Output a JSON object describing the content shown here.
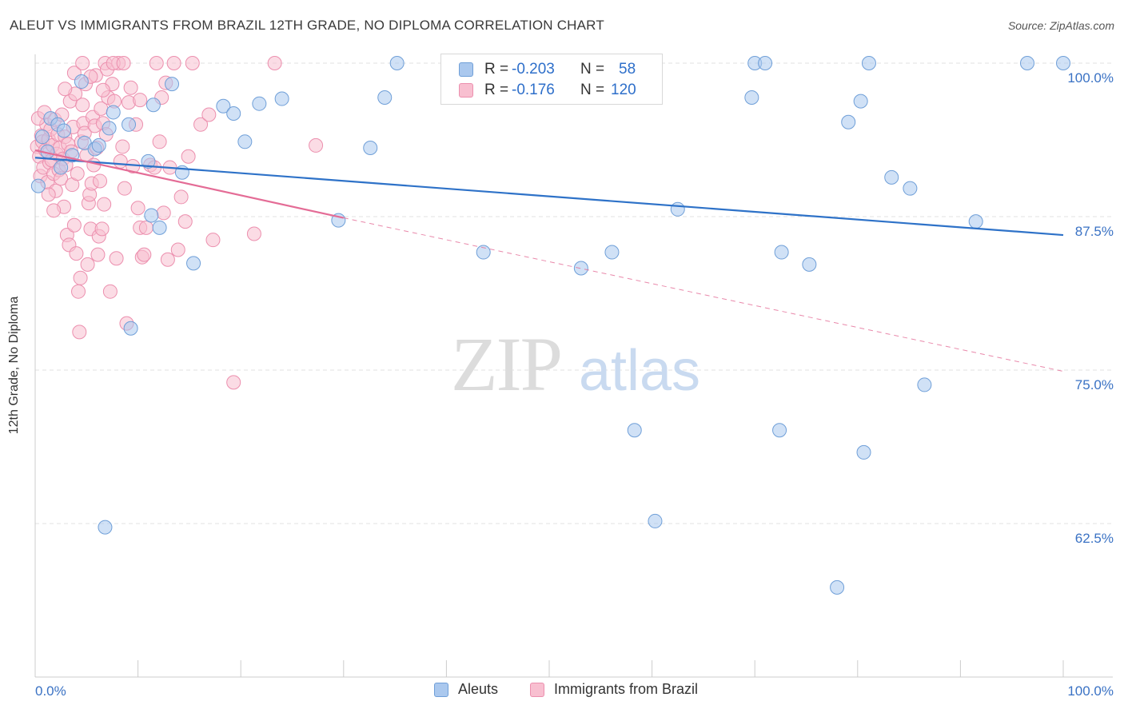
{
  "title": "ALEUT VS IMMIGRANTS FROM BRAZIL 12TH GRADE, NO DIPLOMA CORRELATION CHART",
  "source": "Source: ZipAtlas.com",
  "watermark": {
    "zip": "ZIP",
    "atlas": "atlas"
  },
  "legend_top": [
    {
      "r_label": "R =",
      "r_value": "-0.203",
      "n_label": "N =",
      "n_value": "58"
    },
    {
      "r_label": "R =",
      "r_value": "-0.176",
      "n_label": "N =",
      "n_value": "120"
    }
  ],
  "colors": {
    "aleut_fill": "#aac8ee",
    "aleut_stroke": "#6f9fd8",
    "aleut_line": "#2e72c8",
    "brazil_fill": "#f8bfd0",
    "brazil_stroke": "#ec8fae",
    "brazil_line": "#e46c96",
    "tick_label": "#3a72c4",
    "grid": "#e0e0e0"
  },
  "chart_data": {
    "type": "scatter",
    "xlabel": "",
    "ylabel": "12th Grade, No Diploma",
    "xlim": [
      0,
      100
    ],
    "ylim": [
      50,
      100
    ],
    "x_tick_labels": [
      "0.0%",
      "100.0%"
    ],
    "y_ticks": [
      {
        "value": 100.0,
        "label": "100.0%"
      },
      {
        "value": 87.5,
        "label": "87.5%"
      },
      {
        "value": 75.0,
        "label": "75.0%"
      },
      {
        "value": 62.5,
        "label": "62.5%"
      }
    ],
    "grid": true,
    "legend": [
      "Aleuts",
      "Immigrants from Brazil"
    ],
    "series": [
      {
        "name": "Aleuts",
        "trend": {
          "x": [
            0,
            100
          ],
          "y": [
            92.3,
            86.0
          ],
          "dashed_after": null
        },
        "points": [
          [
            0.3,
            90.0
          ],
          [
            1.5,
            95.5
          ],
          [
            2.2,
            95.0
          ],
          [
            2.8,
            94.5
          ],
          [
            3.6,
            92.5
          ],
          [
            4.5,
            98.5
          ],
          [
            4.8,
            93.5
          ],
          [
            5.8,
            93.0
          ],
          [
            6.2,
            93.3
          ],
          [
            6.8,
            62.2
          ],
          [
            7.2,
            94.7
          ],
          [
            7.6,
            96.0
          ],
          [
            9.1,
            95.0
          ],
          [
            9.3,
            78.4
          ],
          [
            11.0,
            92.0
          ],
          [
            11.3,
            87.6
          ],
          [
            11.5,
            96.6
          ],
          [
            12.1,
            86.6
          ],
          [
            13.3,
            98.3
          ],
          [
            14.3,
            91.1
          ],
          [
            15.4,
            83.7
          ],
          [
            18.3,
            96.5
          ],
          [
            19.3,
            95.9
          ],
          [
            20.4,
            93.6
          ],
          [
            21.8,
            96.7
          ],
          [
            24.0,
            97.1
          ],
          [
            29.5,
            87.2
          ],
          [
            32.6,
            93.1
          ],
          [
            34.0,
            97.2
          ],
          [
            35.2,
            100.0
          ],
          [
            43.6,
            84.6
          ],
          [
            47.3,
            100.0
          ],
          [
            53.1,
            83.3
          ],
          [
            56.1,
            84.6
          ],
          [
            57.3,
            100.0
          ],
          [
            58.3,
            70.1
          ],
          [
            60.3,
            62.7
          ],
          [
            62.5,
            88.1
          ],
          [
            69.7,
            97.2
          ],
          [
            70.0,
            100.0
          ],
          [
            71.0,
            100.0
          ],
          [
            72.4,
            70.1
          ],
          [
            72.6,
            84.6
          ],
          [
            75.3,
            83.6
          ],
          [
            78.0,
            57.3
          ],
          [
            79.1,
            95.2
          ],
          [
            80.3,
            96.9
          ],
          [
            80.6,
            68.3
          ],
          [
            81.1,
            100.0
          ],
          [
            83.3,
            90.7
          ],
          [
            85.1,
            89.8
          ],
          [
            86.5,
            73.8
          ],
          [
            91.5,
            87.1
          ],
          [
            96.5,
            100.0
          ],
          [
            100.0,
            100.0
          ],
          [
            0.7,
            94.0
          ],
          [
            1.2,
            92.8
          ],
          [
            2.5,
            91.5
          ]
        ]
      },
      {
        "name": "Immigrants from Brazil",
        "trend": {
          "x": [
            0,
            30,
            100
          ],
          "y": [
            92.9,
            87.4,
            74.9
          ],
          "dashed_after": 30
        },
        "points": [
          [
            0.2,
            93.2
          ],
          [
            0.4,
            92.4
          ],
          [
            0.5,
            90.8
          ],
          [
            0.6,
            94.1
          ],
          [
            0.7,
            93.6
          ],
          [
            0.8,
            91.5
          ],
          [
            1.0,
            92.9
          ],
          [
            1.1,
            95.0
          ],
          [
            1.2,
            90.3
          ],
          [
            1.3,
            93.8
          ],
          [
            1.4,
            91.9
          ],
          [
            1.5,
            94.6
          ],
          [
            1.6,
            92.1
          ],
          [
            1.7,
            93.3
          ],
          [
            1.8,
            91.0
          ],
          [
            1.9,
            95.4
          ],
          [
            2.0,
            89.6
          ],
          [
            2.1,
            92.6
          ],
          [
            2.2,
            94.2
          ],
          [
            2.3,
            91.3
          ],
          [
            2.4,
            93.1
          ],
          [
            2.5,
            90.6
          ],
          [
            2.6,
            95.8
          ],
          [
            2.7,
            92.2
          ],
          [
            2.8,
            88.3
          ],
          [
            2.9,
            94.0
          ],
          [
            3.0,
            91.7
          ],
          [
            3.1,
            86.0
          ],
          [
            3.2,
            93.4
          ],
          [
            3.3,
            85.2
          ],
          [
            3.4,
            96.9
          ],
          [
            3.5,
            92.8
          ],
          [
            3.6,
            90.1
          ],
          [
            3.7,
            94.8
          ],
          [
            3.8,
            86.8
          ],
          [
            3.9,
            97.5
          ],
          [
            4.0,
            84.5
          ],
          [
            4.1,
            91.0
          ],
          [
            4.2,
            81.4
          ],
          [
            4.3,
            78.1
          ],
          [
            4.4,
            82.5
          ],
          [
            4.5,
            93.6
          ],
          [
            4.6,
            96.6
          ],
          [
            4.7,
            95.1
          ],
          [
            4.8,
            94.3
          ],
          [
            4.9,
            98.3
          ],
          [
            5.0,
            92.5
          ],
          [
            5.1,
            83.6
          ],
          [
            5.2,
            88.6
          ],
          [
            5.3,
            89.3
          ],
          [
            5.4,
            86.5
          ],
          [
            5.5,
            90.2
          ],
          [
            5.6,
            95.6
          ],
          [
            5.7,
            91.7
          ],
          [
            5.8,
            94.9
          ],
          [
            5.9,
            99.0
          ],
          [
            6.0,
            93.1
          ],
          [
            6.1,
            84.4
          ],
          [
            6.2,
            85.9
          ],
          [
            6.3,
            90.4
          ],
          [
            6.4,
            96.3
          ],
          [
            6.5,
            86.5
          ],
          [
            6.6,
            95.1
          ],
          [
            6.7,
            88.5
          ],
          [
            6.8,
            100.0
          ],
          [
            6.9,
            94.2
          ],
          [
            7.0,
            99.5
          ],
          [
            7.1,
            97.2
          ],
          [
            7.3,
            81.4
          ],
          [
            7.5,
            98.3
          ],
          [
            7.7,
            96.9
          ],
          [
            7.9,
            84.1
          ],
          [
            8.1,
            100.0
          ],
          [
            8.3,
            92.0
          ],
          [
            8.5,
            93.2
          ],
          [
            8.7,
            89.8
          ],
          [
            8.9,
            78.8
          ],
          [
            9.1,
            96.8
          ],
          [
            9.5,
            91.6
          ],
          [
            9.8,
            95.0
          ],
          [
            10.0,
            88.2
          ],
          [
            10.2,
            86.6
          ],
          [
            10.4,
            84.2
          ],
          [
            10.6,
            84.4
          ],
          [
            10.8,
            86.6
          ],
          [
            11.2,
            91.7
          ],
          [
            11.6,
            91.5
          ],
          [
            11.8,
            100.0
          ],
          [
            12.1,
            93.6
          ],
          [
            12.3,
            97.2
          ],
          [
            12.5,
            87.8
          ],
          [
            12.7,
            98.4
          ],
          [
            12.9,
            84.0
          ],
          [
            13.1,
            91.5
          ],
          [
            13.5,
            100.0
          ],
          [
            13.9,
            84.8
          ],
          [
            14.2,
            89.1
          ],
          [
            14.6,
            87.1
          ],
          [
            14.9,
            92.4
          ],
          [
            15.3,
            100.0
          ],
          [
            16.1,
            95.0
          ],
          [
            16.9,
            95.8
          ],
          [
            17.3,
            85.6
          ],
          [
            19.3,
            74.0
          ],
          [
            21.3,
            86.1
          ],
          [
            23.3,
            100.0
          ],
          [
            27.3,
            93.3
          ],
          [
            0.3,
            95.5
          ],
          [
            0.9,
            96.0
          ],
          [
            1.3,
            89.3
          ],
          [
            1.8,
            88.0
          ],
          [
            2.9,
            97.9
          ],
          [
            3.8,
            99.2
          ],
          [
            4.6,
            100.0
          ],
          [
            5.4,
            98.9
          ],
          [
            6.6,
            97.8
          ],
          [
            7.6,
            100.0
          ],
          [
            8.6,
            100.0
          ],
          [
            10.2,
            97.0
          ],
          [
            9.3,
            98.0
          ]
        ]
      }
    ]
  }
}
